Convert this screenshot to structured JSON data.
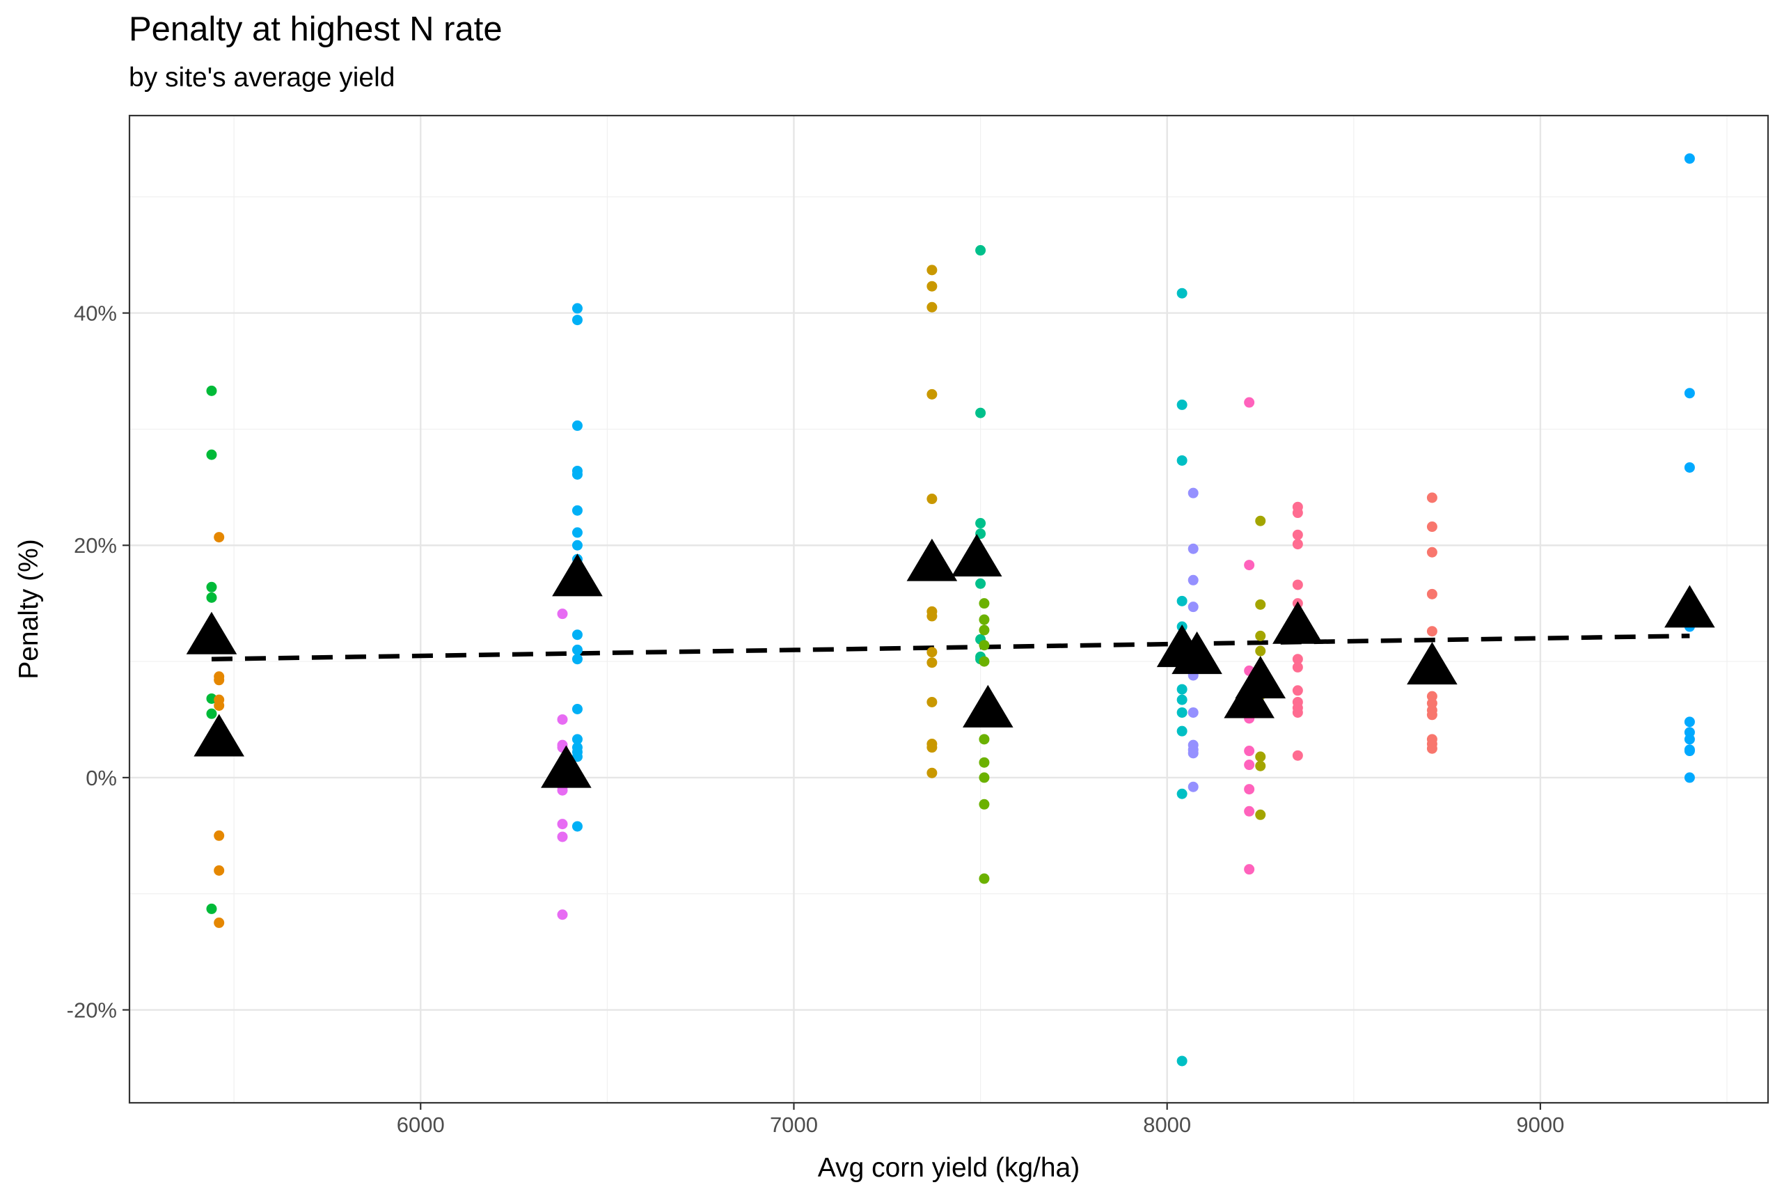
{
  "chart_data": {
    "type": "scatter",
    "title": "Penalty at highest N rate",
    "subtitle": "by site's average yield",
    "xlabel": "Avg corn yield (kg/ha)",
    "ylabel": "Penalty (%)",
    "xlim": [
      5220,
      9610
    ],
    "ylim": [
      -28,
      57
    ],
    "x_ticks": [
      6000,
      7000,
      8000,
      9000
    ],
    "x_tick_labels": [
      "6000",
      "7000",
      "8000",
      "9000"
    ],
    "y_ticks": [
      -20,
      0,
      20,
      40
    ],
    "y_tick_labels": [
      "-20%",
      "0%",
      "20%",
      "40%"
    ],
    "grid": true,
    "legend": "none",
    "series": [
      {
        "color": "#00BA38",
        "x": 5440,
        "y": [
          33.3,
          27.8,
          16.4,
          15.5,
          6.8,
          5.5,
          -11.3
        ]
      },
      {
        "color": "#E58700",
        "x": 5460,
        "y": [
          20.7,
          8.7,
          8.4,
          6.7,
          6.2,
          -5.0,
          -8.0,
          -12.5
        ]
      },
      {
        "color": "#E76BF3",
        "x": 6380,
        "y": [
          14.1,
          5.0,
          2.8,
          2.6,
          -0.8,
          -1.1,
          -4.0,
          -5.1,
          -11.8
        ]
      },
      {
        "color": "#00B0F6",
        "x": 6420,
        "y": [
          40.4,
          39.4,
          30.3,
          26.4,
          26.1,
          23.0,
          21.1,
          20.0,
          18.8,
          12.3,
          11.0,
          10.2,
          5.9,
          3.3,
          2.6,
          2.2,
          1.8,
          -4.2
        ]
      },
      {
        "color": "#C99800",
        "x": 7370,
        "y": [
          43.7,
          42.3,
          40.5,
          33.0,
          24.0,
          14.3,
          13.9,
          10.8,
          9.9,
          6.5,
          2.9,
          2.6,
          0.4
        ]
      },
      {
        "color": "#00C08B",
        "x": 7500,
        "y": [
          45.4,
          31.4,
          21.9,
          21.0,
          16.7,
          11.9,
          10.4,
          10.2
        ]
      },
      {
        "color": "#6BB100",
        "x": 7510,
        "y": [
          15.0,
          13.6,
          12.7,
          11.4,
          10.0,
          3.3,
          1.3,
          0.0,
          -2.3,
          -8.7
        ]
      },
      {
        "color": "#00BFC4",
        "x": 8040,
        "y": [
          41.7,
          32.1,
          27.3,
          15.2,
          13.0,
          7.6,
          6.7,
          5.6,
          4.0,
          -1.4,
          -24.4
        ]
      },
      {
        "color": "#9590FF",
        "x": 8070,
        "y": [
          24.5,
          19.7,
          17.0,
          14.7,
          8.8,
          5.6,
          2.8,
          2.4,
          2.1,
          -0.8
        ]
      },
      {
        "color": "#FF62BC",
        "x": 8220,
        "y": [
          32.3,
          18.3,
          9.2,
          6.5,
          5.1,
          2.3,
          1.1,
          -1.0,
          -2.9,
          -7.9
        ]
      },
      {
        "color": "#A3A500",
        "x": 8250,
        "y": [
          22.1,
          14.9,
          12.2,
          10.9,
          9.3,
          7.1,
          1.8,
          1.0,
          -3.2
        ]
      },
      {
        "color": "#FF6C91",
        "x": 8350,
        "y": [
          23.3,
          22.8,
          20.9,
          20.1,
          16.6,
          15.0,
          10.2,
          9.5,
          7.5,
          6.5,
          6.0,
          5.6,
          1.9
        ]
      },
      {
        "color": "#F8766D",
        "x": 8710,
        "y": [
          24.1,
          21.6,
          19.4,
          15.8,
          12.6,
          7.0,
          6.4,
          5.8,
          5.4,
          3.3,
          2.9,
          2.5
        ]
      },
      {
        "color": "#00A9FF",
        "x": 9400,
        "y": [
          53.3,
          33.1,
          26.7,
          13.0,
          4.8,
          3.9,
          3.3,
          2.4,
          2.3,
          0.0
        ]
      }
    ],
    "means": {
      "marker": "triangle",
      "color": "#000000",
      "x": [
        5440,
        5460,
        6390,
        6420,
        7370,
        7490,
        7520,
        8040,
        8080,
        8220,
        8250,
        8350,
        8710,
        9400
      ],
      "y": [
        12.3,
        3.5,
        0.8,
        17.3,
        18.6,
        19.0,
        6.0,
        11.2,
        10.6,
        6.8,
        8.5,
        13.2,
        9.7,
        14.6
      ]
    },
    "trend": {
      "style": "dashed",
      "color": "#000000",
      "x": [
        5440,
        9400
      ],
      "y": [
        10.2,
        12.2
      ]
    }
  }
}
